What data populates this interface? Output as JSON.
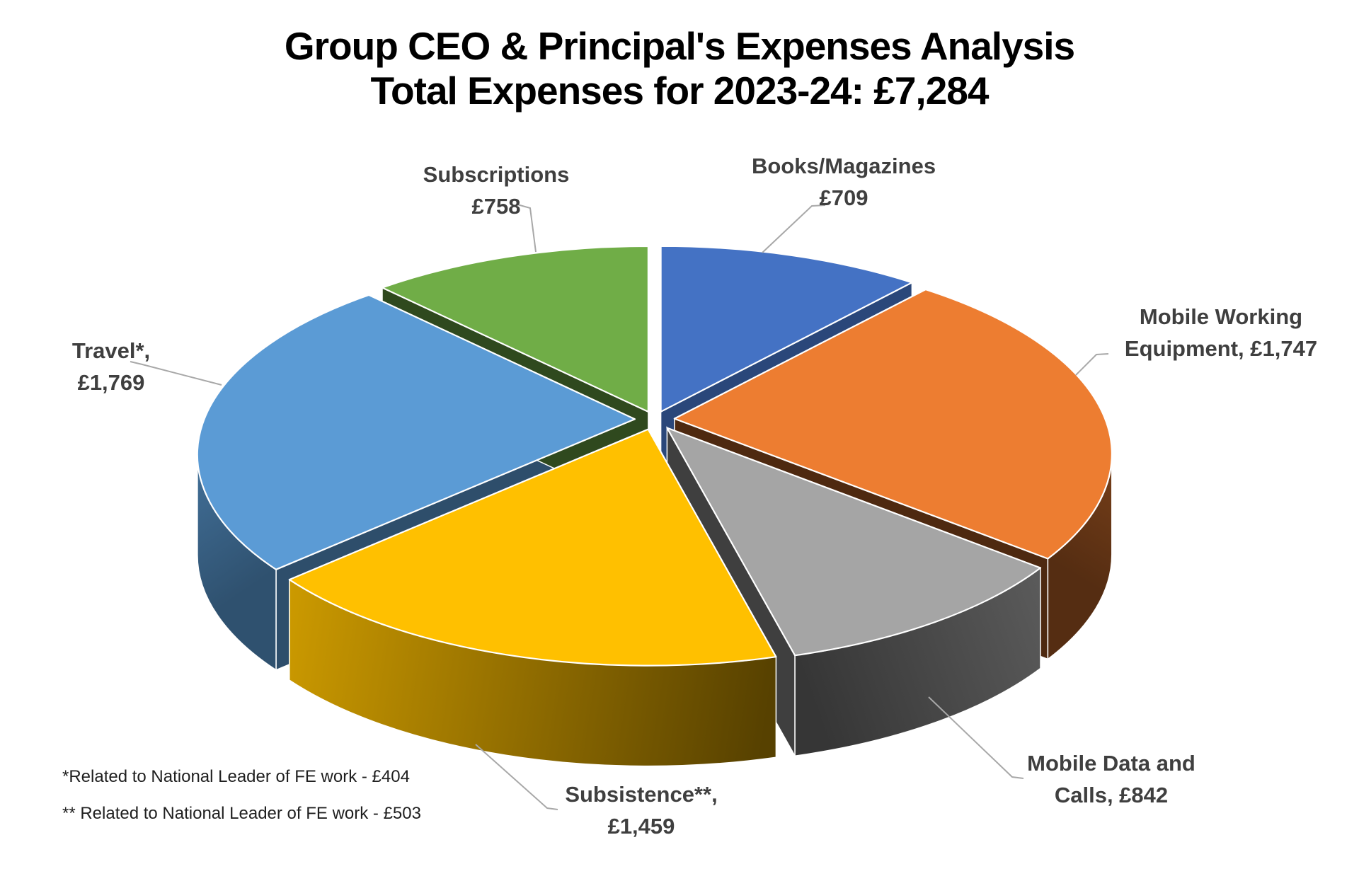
{
  "chart_data": {
    "type": "pie",
    "style": "3d-exploded",
    "title": "Group CEO & Principal's Expenses Analysis",
    "subtitle": "Total Expenses for 2023-24: £7,284",
    "total": 7284,
    "currency": "£",
    "slices": [
      {
        "name": "Books/Magazines",
        "value": 709,
        "display_value": "£709",
        "color": "#4472C4",
        "label_lines": [
          "Books/Magazines",
          "£709"
        ]
      },
      {
        "name": "Mobile Working Equipment",
        "value": 1747,
        "display_value": "£1,747",
        "color": "#ED7D31",
        "label_lines": [
          "Mobile Working",
          "Equipment, £1,747"
        ]
      },
      {
        "name": "Mobile Data and Calls",
        "value": 842,
        "display_value": "£842",
        "color": "#A5A5A5",
        "label_lines": [
          "Mobile Data and",
          "Calls, £842"
        ]
      },
      {
        "name": "Subsistence",
        "value": 1459,
        "display_value": "£1,459",
        "color": "#FFC000",
        "label_lines": [
          "Subsistence**,",
          "£1,459"
        ]
      },
      {
        "name": "Travel",
        "value": 1769,
        "display_value": "£1,769",
        "color": "#5B9BD5",
        "label_lines": [
          "Travel*,",
          "£1,769"
        ]
      },
      {
        "name": "Subscriptions",
        "value": 758,
        "display_value": "£758",
        "color": "#70AD47",
        "label_lines": [
          "Subscriptions",
          "£758"
        ]
      }
    ],
    "footnotes": [
      "*Related to National Leader of FE work - £404",
      "** Related to National Leader of FE work - £503"
    ],
    "legend_position": "none",
    "grid": "off",
    "label_color": "#3f3f3f",
    "leader_line_color": "#a8a8a8",
    "background": "#ffffff"
  }
}
